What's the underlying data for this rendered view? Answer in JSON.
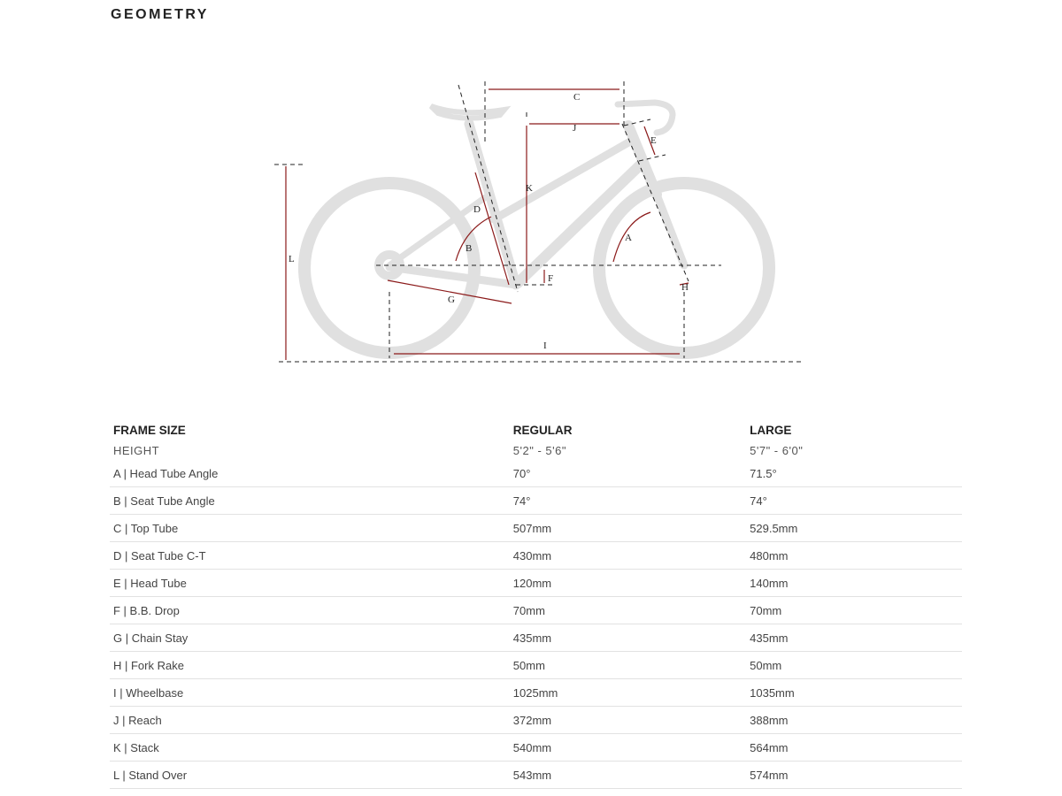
{
  "title": "GEOMETRY",
  "diagram_labels": {
    "A": "A",
    "B": "B",
    "C": "C",
    "D": "D",
    "E": "E",
    "F": "F",
    "G": "G",
    "H": "H",
    "I": "I",
    "J": "J",
    "K": "K",
    "L": "L"
  },
  "colors": {
    "annotation": "#8b1a1a",
    "bike": "#e0e0e0"
  },
  "table": {
    "headers": [
      "FRAME SIZE",
      "REGULAR",
      "LARGE"
    ],
    "height": {
      "label": "HEIGHT",
      "regular": "5'2\" - 5'6\"",
      "large": "5'7\" - 6'0\""
    },
    "rows": [
      {
        "label": "A | Head Tube Angle",
        "regular": "70°",
        "large": "71.5°"
      },
      {
        "label": "B | Seat Tube Angle",
        "regular": "74°",
        "large": "74°"
      },
      {
        "label": "C | Top Tube",
        "regular": "507mm",
        "large": "529.5mm"
      },
      {
        "label": "D | Seat Tube C-T",
        "regular": "430mm",
        "large": "480mm"
      },
      {
        "label": "E | Head Tube",
        "regular": "120mm",
        "large": "140mm"
      },
      {
        "label": "F | B.B. Drop",
        "regular": "70mm",
        "large": "70mm"
      },
      {
        "label": "G | Chain Stay",
        "regular": "435mm",
        "large": "435mm"
      },
      {
        "label": "H | Fork Rake",
        "regular": "50mm",
        "large": "50mm"
      },
      {
        "label": "I | Wheelbase",
        "regular": "1025mm",
        "large": "1035mm"
      },
      {
        "label": "J | Reach",
        "regular": "372mm",
        "large": "388mm"
      },
      {
        "label": "K | Stack",
        "regular": "540mm",
        "large": "564mm"
      },
      {
        "label": "L | Stand Over",
        "regular": "543mm",
        "large": "574mm"
      }
    ]
  }
}
